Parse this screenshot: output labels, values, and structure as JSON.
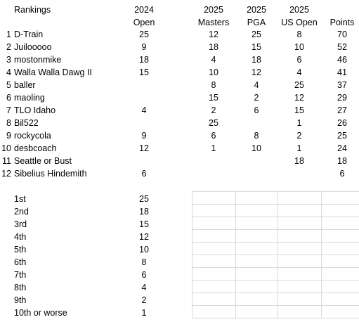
{
  "rankings_table": {
    "title": "Rankings",
    "headers": {
      "col_2024_open": [
        "2024",
        "Open"
      ],
      "col_2025_masters": [
        "2025",
        "Masters"
      ],
      "col_2025_pga": [
        "2025",
        "PGA"
      ],
      "col_2025_us_open": [
        "2025",
        "US Open"
      ],
      "col_points": [
        "",
        "Points"
      ]
    },
    "rows": [
      {
        "rank": "1",
        "name": "D-Train",
        "open2024": "25",
        "masters2025": "12",
        "pga2025": "25",
        "usopen2025": "8",
        "points": "70"
      },
      {
        "rank": "2",
        "name": "Juilooooo",
        "open2024": "9",
        "masters2025": "18",
        "pga2025": "15",
        "usopen2025": "10",
        "points": "52"
      },
      {
        "rank": "3",
        "name": "mostonmike",
        "open2024": "18",
        "masters2025": "4",
        "pga2025": "18",
        "usopen2025": "6",
        "points": "46"
      },
      {
        "rank": "4",
        "name": "Walla Walla Dawg II",
        "open2024": "15",
        "masters2025": "10",
        "pga2025": "12",
        "usopen2025": "4",
        "points": "41"
      },
      {
        "rank": "5",
        "name": "baller",
        "open2024": "",
        "masters2025": "8",
        "pga2025": "4",
        "usopen2025": "25",
        "points": "37"
      },
      {
        "rank": "6",
        "name": "maoling",
        "open2024": "",
        "masters2025": "15",
        "pga2025": "2",
        "usopen2025": "12",
        "points": "29"
      },
      {
        "rank": "7",
        "name": "TLO Idaho",
        "open2024": "4",
        "masters2025": "2",
        "pga2025": "6",
        "usopen2025": "15",
        "points": "27"
      },
      {
        "rank": "8",
        "name": "Bil522",
        "open2024": "",
        "masters2025": "25",
        "pga2025": "",
        "usopen2025": "1",
        "points": "26"
      },
      {
        "rank": "9",
        "name": "rockycola",
        "open2024": "9",
        "masters2025": "6",
        "pga2025": "8",
        "usopen2025": "2",
        "points": "25"
      },
      {
        "rank": "10",
        "name": "desbcoach",
        "open2024": "12",
        "masters2025": "1",
        "pga2025": "10",
        "usopen2025": "1",
        "points": "24"
      },
      {
        "rank": "11",
        "name": "Seattle or Bust",
        "open2024": "",
        "masters2025": "",
        "pga2025": "",
        "usopen2025": "18",
        "points": "18"
      },
      {
        "rank": "12",
        "name": "Sibelius Hindemith",
        "open2024": "6",
        "masters2025": "",
        "pga2025": "",
        "usopen2025": "",
        "points": "6"
      }
    ]
  },
  "points_table": {
    "rows": [
      {
        "place": "1st",
        "points": "25"
      },
      {
        "place": "2nd",
        "points": "18"
      },
      {
        "place": "3rd",
        "points": "15"
      },
      {
        "place": "4th",
        "points": "12"
      },
      {
        "place": "5th",
        "points": "10"
      },
      {
        "place": "6th",
        "points": "8"
      },
      {
        "place": "7th",
        "points": "6"
      },
      {
        "place": "8th",
        "points": "4"
      },
      {
        "place": "9th",
        "points": "2"
      },
      {
        "place": "10th or worse",
        "points": "1"
      }
    ]
  }
}
